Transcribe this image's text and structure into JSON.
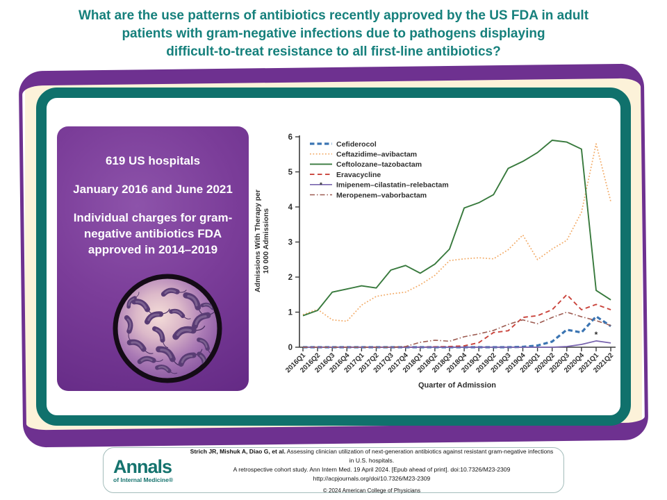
{
  "title": {
    "line1": "What are the use patterns of antibiotics recently approved by the US FDA in adult",
    "line2": "patients with gram-negative infections due to pathogens displaying",
    "line3": "difficult-to-treat resistance to all first-line antibiotics?"
  },
  "study": {
    "facts": [
      "619 US hospitals",
      "January 2016 and June 2021",
      "Individual charges for gram-negative antibiotics FDA approved in 2014–2019"
    ]
  },
  "chart_data": {
    "type": "line",
    "title": "",
    "xlabel": "Quarter of Admission",
    "ylabel": "Admissions With Therapy per 10 000 Admissions",
    "ylabel_lines": [
      "Admissions With Therapy per",
      "10 000 Admissions"
    ],
    "ylim": [
      0,
      6
    ],
    "yticks": [
      0,
      1,
      2,
      3,
      4,
      5,
      6
    ],
    "grid": false,
    "legend_position": "top-left",
    "x": [
      "2016Q1",
      "2016Q2",
      "2016Q3",
      "2016Q4",
      "2017Q1",
      "2017Q2",
      "2017Q3",
      "2017Q4",
      "2018Q1",
      "2018Q2",
      "2018Q3",
      "2018Q4",
      "2019Q1",
      "2019Q2",
      "2019Q3",
      "2019Q4",
      "2020Q1",
      "2020Q2",
      "2020Q3",
      "2020Q4",
      "2021Q1",
      "2021Q2"
    ],
    "series": [
      {
        "name": "Cefiderocol",
        "color": "#3a74b2",
        "style": "bold-dashed",
        "values": [
          0,
          0,
          0,
          0,
          0,
          0,
          0,
          0,
          0,
          0,
          0,
          0,
          0,
          0,
          0,
          0.01,
          0.05,
          0.16,
          0.5,
          0.42,
          0.88,
          0.6
        ]
      },
      {
        "name": "Ceftazidime–avibactam",
        "color": "#f2a964",
        "style": "dotted",
        "values": [
          0.93,
          1.08,
          0.78,
          0.74,
          1.2,
          1.45,
          1.52,
          1.57,
          1.78,
          2.05,
          2.47,
          2.52,
          2.55,
          2.52,
          2.78,
          3.2,
          2.5,
          2.8,
          3.05,
          3.85,
          5.8,
          4.15
        ]
      },
      {
        "name": "Ceftolozane–tazobactam",
        "color": "#37793c",
        "style": "solid",
        "values": [
          0.9,
          1.05,
          1.57,
          1.66,
          1.75,
          1.69,
          2.2,
          2.33,
          2.11,
          2.37,
          2.8,
          3.97,
          4.12,
          4.35,
          5.1,
          5.3,
          5.55,
          5.9,
          5.85,
          5.65,
          1.62,
          1.35
        ]
      },
      {
        "name": "Eravacycline",
        "color": "#c9423a",
        "style": "dashed",
        "values": [
          0,
          0,
          0,
          0,
          0,
          0,
          0,
          0,
          0,
          0.01,
          0.02,
          0.04,
          0.13,
          0.42,
          0.47,
          0.85,
          0.9,
          1.07,
          1.5,
          1.07,
          1.22,
          1.07
        ]
      },
      {
        "name": "Imipenem–cilastatin–relebactam",
        "color": "#7763ae",
        "style": "solid-thin",
        "marker": "*",
        "marker_at": "2021Q1",
        "values": [
          0,
          0,
          0,
          0,
          0,
          0,
          0,
          0,
          0,
          0,
          0,
          0,
          0,
          0,
          0,
          0,
          0,
          0,
          0.02,
          0.08,
          0.18,
          0.12
        ]
      },
      {
        "name": "Meropenem–vaborbactam",
        "color": "#9c5a50",
        "style": "dashdot",
        "values": [
          0,
          0,
          0,
          0,
          0,
          0,
          0,
          0.02,
          0.14,
          0.2,
          0.17,
          0.3,
          0.38,
          0.48,
          0.65,
          0.78,
          0.67,
          0.85,
          1.0,
          0.87,
          0.76,
          0.62
        ]
      }
    ]
  },
  "colors": {
    "title_teal": "#16807c",
    "frame_teal": "#10716c",
    "frame_purple": "#6e3190",
    "cream": "#fcf2d9",
    "infobox_purple": "#7b3d99"
  },
  "footer": {
    "logo_title": "Annals",
    "logo_subtitle": "of Internal Medicine®",
    "citation_bold": "Strich JR, Mishuk A, Diao G, et al.",
    "citation_rest": " Assessing clinician utilization of next-generation antibiotics against resistant gram-negative infections in U.S. hospitals.",
    "citation_line2": "A retrospective cohort study. Ann Intern Med. 19 April 2024. [Epub ahead of print]. doi:10.7326/M23-2309",
    "citation_line3": "http://acpjournals.org/doi/10.7326/M23-2309",
    "copyright": "© 2024 American College of Physicians"
  }
}
